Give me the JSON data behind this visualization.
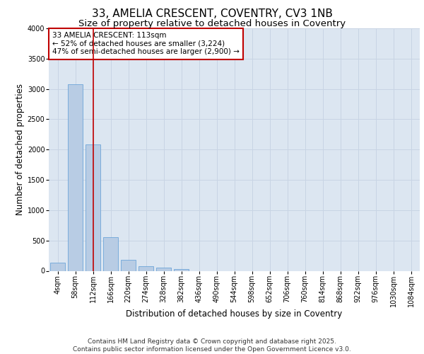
{
  "title_line1": "33, AMELIA CRESCENT, COVENTRY, CV3 1NB",
  "title_line2": "Size of property relative to detached houses in Coventry",
  "xlabel": "Distribution of detached houses by size in Coventry",
  "ylabel": "Number of detached properties",
  "categories": [
    "4sqm",
    "58sqm",
    "112sqm",
    "166sqm",
    "220sqm",
    "274sqm",
    "328sqm",
    "382sqm",
    "436sqm",
    "490sqm",
    "544sqm",
    "598sqm",
    "652sqm",
    "706sqm",
    "760sqm",
    "814sqm",
    "868sqm",
    "922sqm",
    "976sqm",
    "1030sqm",
    "1084sqm"
  ],
  "bar_values": [
    140,
    3080,
    2080,
    560,
    185,
    80,
    55,
    35,
    0,
    0,
    0,
    0,
    0,
    0,
    0,
    0,
    0,
    0,
    0,
    0,
    0
  ],
  "bar_color": "#b8cce4",
  "bar_edge_color": "#5b9bd5",
  "grid_color": "#c8d4e4",
  "background_color": "#dce6f1",
  "vline_x": 2,
  "vline_color": "#c00000",
  "annotation_text": "33 AMELIA CRESCENT: 113sqm\n← 52% of detached houses are smaller (3,224)\n47% of semi-detached houses are larger (2,900) →",
  "annotation_box_color": "#c00000",
  "ylim": [
    0,
    4000
  ],
  "yticks": [
    0,
    500,
    1000,
    1500,
    2000,
    2500,
    3000,
    3500,
    4000
  ],
  "footer_text": "Contains HM Land Registry data © Crown copyright and database right 2025.\nContains public sector information licensed under the Open Government Licence v3.0.",
  "title_fontsize": 11,
  "subtitle_fontsize": 9.5,
  "axis_label_fontsize": 8.5,
  "tick_fontsize": 7,
  "annotation_fontsize": 7.5,
  "footer_fontsize": 6.5
}
